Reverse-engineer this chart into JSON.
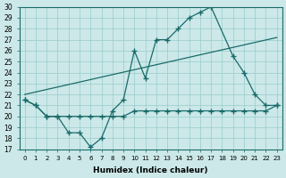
{
  "xlabel": "Humidex (Indice chaleur)",
  "background_color": "#cce8e8",
  "line_color": "#1a6b6b",
  "grid_color": "#99cccc",
  "ylim": [
    17,
    30
  ],
  "xlim": [
    -0.5,
    23.5
  ],
  "yticks": [
    17,
    18,
    19,
    20,
    21,
    22,
    23,
    24,
    25,
    26,
    27,
    28,
    29,
    30
  ],
  "xticks": [
    0,
    1,
    2,
    3,
    4,
    5,
    6,
    7,
    8,
    9,
    10,
    11,
    12,
    13,
    14,
    15,
    16,
    17,
    18,
    19,
    20,
    21,
    22,
    23
  ],
  "line1_x": [
    0,
    1,
    2,
    3,
    4,
    5,
    6,
    7,
    8,
    9,
    10,
    11,
    12,
    13,
    14,
    15,
    16,
    17,
    19,
    20,
    21,
    22,
    23
  ],
  "line1_y": [
    21.5,
    21.0,
    20.0,
    20.0,
    18.5,
    18.5,
    17.2,
    18.0,
    20.5,
    21.5,
    26.0,
    23.5,
    27.0,
    27.0,
    28.0,
    29.0,
    29.5,
    30.0,
    25.5,
    24.0,
    22.0,
    21.0,
    21.0
  ],
  "line2_x": [
    0,
    1,
    2,
    3,
    4,
    5,
    6,
    7,
    8,
    9,
    10,
    11,
    12,
    13,
    14,
    15,
    16,
    17,
    18,
    19,
    20,
    21,
    22,
    23
  ],
  "line2_y": [
    21.5,
    21.0,
    20.0,
    20.0,
    20.0,
    20.0,
    20.0,
    20.0,
    20.0,
    20.0,
    20.5,
    20.5,
    20.5,
    20.5,
    20.5,
    20.5,
    20.5,
    20.5,
    20.5,
    20.5,
    20.5,
    20.5,
    20.5,
    21.0
  ],
  "line3_x": [
    0,
    23
  ],
  "line3_y": [
    22.0,
    27.2
  ]
}
